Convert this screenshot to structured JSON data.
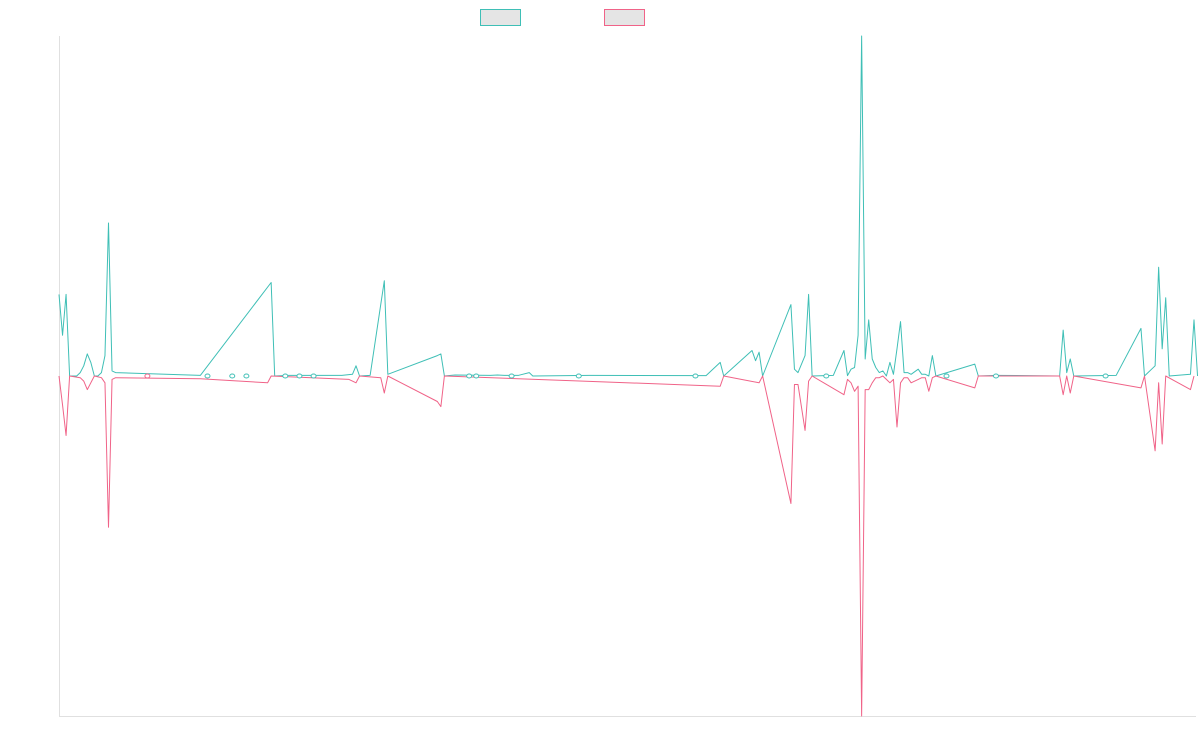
{
  "chart_data": {
    "type": "line",
    "title": "",
    "xlabel": "",
    "ylabel": "",
    "ylim": [
      -1,
      1
    ],
    "grid": false,
    "legend": "top-center",
    "series": [
      {
        "color": "#3fbfb6",
        "fill": "#e5e5e5",
        "points": [
          [
            0,
            0.24
          ],
          [
            1,
            0.12
          ],
          [
            2,
            0.24
          ],
          [
            3,
            0
          ],
          [
            4,
            0
          ],
          [
            5,
            0
          ],
          [
            6,
            0.01
          ],
          [
            7,
            0.03
          ],
          [
            8,
            0.065
          ],
          [
            9,
            0.04
          ],
          [
            10,
            0
          ],
          [
            11,
            0
          ],
          [
            12,
            0.01
          ],
          [
            13,
            0.06
          ],
          [
            14,
            0.45
          ],
          [
            15,
            0.015
          ],
          [
            16,
            0.01
          ],
          [
            40,
            0.002
          ],
          [
            60,
            0.275
          ],
          [
            61,
            0
          ],
          [
            65,
            0.002
          ],
          [
            71,
            0.002
          ],
          [
            80,
            0.002
          ],
          [
            83,
            0.005
          ],
          [
            84,
            0.03
          ],
          [
            85,
            0
          ],
          [
            88,
            0.002
          ],
          [
            92,
            0.28
          ],
          [
            93,
            0.005
          ],
          [
            107,
            0.06
          ],
          [
            108,
            0.065
          ],
          [
            109,
            0
          ],
          [
            112,
            0.003
          ],
          [
            122,
            0.002
          ],
          [
            124,
            0.003
          ],
          [
            126,
            0.002
          ],
          [
            130,
            0.002
          ],
          [
            133,
            0.01
          ],
          [
            134,
            0
          ],
          [
            150,
            0.002
          ],
          [
            183,
            0.001
          ],
          [
            187,
            0.04
          ],
          [
            188,
            0
          ],
          [
            196,
            0.075
          ],
          [
            197,
            0.045
          ],
          [
            198,
            0.07
          ],
          [
            199,
            0
          ],
          [
            207,
            0.21
          ],
          [
            208,
            0.02
          ],
          [
            209,
            0.01
          ],
          [
            211,
            0.06
          ],
          [
            212,
            0.24
          ],
          [
            213,
            0
          ],
          [
            219,
            0.002
          ],
          [
            222,
            0.075
          ],
          [
            223,
            0.001
          ],
          [
            224,
            0.02
          ],
          [
            225,
            0.025
          ],
          [
            226,
            0.12
          ],
          [
            227,
            1.0
          ],
          [
            228,
            0.05
          ],
          [
            229,
            0.165
          ],
          [
            230,
            0.05
          ],
          [
            231,
            0.025
          ],
          [
            232,
            0.01
          ],
          [
            233,
            0.015
          ],
          [
            234,
            0
          ],
          [
            235,
            0.04
          ],
          [
            236,
            0.005
          ],
          [
            237,
            0.08
          ],
          [
            238,
            0.16
          ],
          [
            239,
            0.01
          ],
          [
            240,
            0.01
          ],
          [
            241,
            0.005
          ],
          [
            243,
            0.02
          ],
          [
            244,
            0.005
          ],
          [
            245,
            0.005
          ],
          [
            246,
            0
          ],
          [
            247,
            0.06
          ],
          [
            248,
            0
          ],
          [
            259,
            0.035
          ],
          [
            260,
            0
          ],
          [
            265,
            0.002
          ],
          [
            283,
            0
          ],
          [
            284,
            0.135
          ],
          [
            285,
            0.01
          ],
          [
            286,
            0.05
          ],
          [
            287,
            0
          ],
          [
            299,
            0.002
          ],
          [
            306,
            0.14
          ],
          [
            307,
            0
          ],
          [
            310,
            0.03
          ],
          [
            311,
            0.32
          ],
          [
            312,
            0.08
          ],
          [
            313,
            0.23
          ],
          [
            314,
            0
          ],
          [
            320,
            0.005
          ],
          [
            321,
            0.165
          ],
          [
            322,
            0
          ]
        ]
      },
      {
        "color": "#f06388",
        "fill": "#e5e5e5",
        "points": [
          [
            0,
            0
          ],
          [
            1,
            -0.085
          ],
          [
            2,
            -0.175
          ],
          [
            3,
            0
          ],
          [
            6,
            -0.005
          ],
          [
            7,
            -0.015
          ],
          [
            8,
            -0.04
          ],
          [
            9,
            -0.02
          ],
          [
            10,
            0
          ],
          [
            12,
            -0.005
          ],
          [
            13,
            -0.02
          ],
          [
            14,
            -0.445
          ],
          [
            15,
            -0.01
          ],
          [
            16,
            -0.005
          ],
          [
            40,
            -0.008
          ],
          [
            59,
            -0.02
          ],
          [
            60,
            0
          ],
          [
            82,
            -0.01
          ],
          [
            84,
            -0.02
          ],
          [
            85,
            0
          ],
          [
            91,
            -0.005
          ],
          [
            92,
            -0.05
          ],
          [
            93,
            0
          ],
          [
            107,
            -0.075
          ],
          [
            108,
            -0.09
          ],
          [
            109,
            0
          ],
          [
            187,
            -0.03
          ],
          [
            188,
            0
          ],
          [
            198,
            -0.02
          ],
          [
            199,
            0
          ],
          [
            207,
            -0.375
          ],
          [
            208,
            -0.025
          ],
          [
            209,
            -0.025
          ],
          [
            211,
            -0.16
          ],
          [
            212,
            -0.015
          ],
          [
            213,
            0
          ],
          [
            222,
            -0.055
          ],
          [
            223,
            -0.01
          ],
          [
            224,
            -0.02
          ],
          [
            225,
            -0.045
          ],
          [
            226,
            -0.03
          ],
          [
            227,
            -1.0
          ],
          [
            228,
            -0.04
          ],
          [
            229,
            -0.04
          ],
          [
            230,
            -0.02
          ],
          [
            231,
            -0.005
          ],
          [
            232,
            -0.005
          ],
          [
            233,
            0
          ],
          [
            234,
            -0.01
          ],
          [
            235,
            -0.02
          ],
          [
            236,
            -0.01
          ],
          [
            237,
            -0.15
          ],
          [
            238,
            -0.02
          ],
          [
            239,
            -0.005
          ],
          [
            240,
            -0.005
          ],
          [
            241,
            -0.02
          ],
          [
            243,
            -0.01
          ],
          [
            244,
            -0.005
          ],
          [
            245,
            -0.005
          ],
          [
            246,
            -0.045
          ],
          [
            247,
            -0.005
          ],
          [
            248,
            0
          ],
          [
            259,
            -0.035
          ],
          [
            260,
            0
          ],
          [
            283,
            0
          ],
          [
            284,
            -0.055
          ],
          [
            285,
            0
          ],
          [
            286,
            -0.05
          ],
          [
            287,
            0
          ],
          [
            306,
            -0.035
          ],
          [
            307,
            0
          ],
          [
            310,
            -0.22
          ],
          [
            311,
            -0.02
          ],
          [
            312,
            -0.2
          ],
          [
            313,
            0
          ],
          [
            320,
            -0.04
          ],
          [
            321,
            0
          ]
        ]
      }
    ],
    "markers": [
      {
        "series": 1,
        "x": 25,
        "y": 0
      },
      {
        "series": 0,
        "x": 42,
        "y": 0
      },
      {
        "series": 0,
        "x": 49,
        "y": 0
      },
      {
        "series": 0,
        "x": 53,
        "y": 0
      },
      {
        "series": 0,
        "x": 64,
        "y": 0
      },
      {
        "series": 0,
        "x": 68,
        "y": 0
      },
      {
        "series": 0,
        "x": 72,
        "y": 0
      },
      {
        "series": 0,
        "x": 116,
        "y": 0
      },
      {
        "series": 0,
        "x": 118,
        "y": 0
      },
      {
        "series": 0,
        "x": 128,
        "y": 0
      },
      {
        "series": 0,
        "x": 147,
        "y": 0
      },
      {
        "series": 0,
        "x": 180,
        "y": 0
      },
      {
        "series": 0,
        "x": 217,
        "y": 0
      },
      {
        "series": 0,
        "x": 251,
        "y": 0
      },
      {
        "series": 0,
        "x": 265,
        "y": 0
      },
      {
        "series": 0,
        "x": 296,
        "y": 0
      }
    ],
    "x_max": 321
  }
}
